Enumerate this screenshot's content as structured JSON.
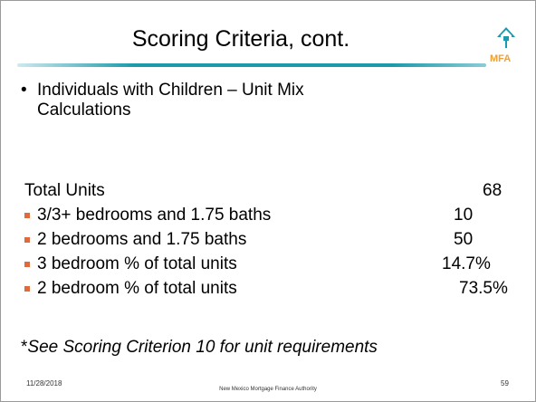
{
  "header": {
    "title": "Scoring Criteria, cont.",
    "logo": "MFA"
  },
  "bullet": "Individuals with Children – Unit Mix Calculations",
  "total": {
    "label": "Total Units",
    "value": "68"
  },
  "items": [
    {
      "label": "3/3+ bedrooms and 1.75 baths",
      "value": "10"
    },
    {
      "label": "2 bedrooms and 1.75 baths",
      "value": "50"
    },
    {
      "label": "3 bedroom % of total units",
      "value": "14.7%"
    },
    {
      "label": "2 bedroom % of total units",
      "value": "73.5%"
    }
  ],
  "footnote": {
    "mark": "*",
    "text": "See Scoring Criterion 10 for unit requirements"
  },
  "footer": {
    "date": "11/28/2018",
    "organization": "New Mexico Mortgage Finance Authority",
    "page": "59"
  }
}
